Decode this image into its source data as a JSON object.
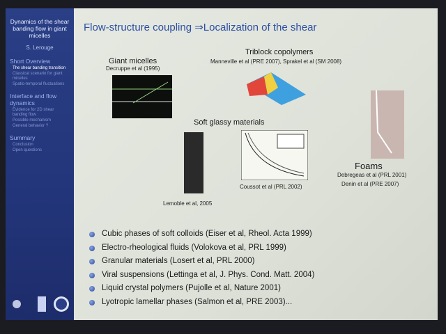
{
  "sidebar": {
    "title": "Dynamics of the shear banding flow in giant micelles",
    "author": "S. Lerouge",
    "sections": [
      {
        "title": "Short Overview",
        "items": [
          "The shear banding transition",
          "Classical scenario for giant micelles",
          "Spatio-temporal fluctuations"
        ]
      },
      {
        "title": "Interface and flow dynamics",
        "items": [
          "Evidence for 2D shear banding flow",
          "Possible mechanism",
          "General behavior ?"
        ]
      },
      {
        "title": "Summary",
        "items": [
          "Conclusion",
          "Open questions"
        ]
      }
    ]
  },
  "slide": {
    "title": "Flow-structure coupling ⇒Localization of the shear",
    "figures": {
      "giant_micelles": {
        "label": "Giant micelles",
        "ref": "Decruppe et al (1995)"
      },
      "triblock": {
        "label": "Triblock copolymers",
        "ref": "Manneville et al (PRE 2007), Sprakel et al (SM 2008)"
      },
      "soft_glassy": {
        "label": "Soft glassy materials",
        "ref_left": "Lemoble et al, 2005",
        "ref_right": "Coussot et al (PRL 2002)"
      },
      "foams": {
        "label": "Foams",
        "refs": [
          "Debregeas et al (PRL 2001)",
          "Denin et al (PRE 2007)"
        ]
      }
    },
    "bullets": [
      "Cubic phases of soft colloids (Eiser et al, Rheol. Acta 1999)",
      "Electro-rheological fluids (Volokova et al, PRL 1999)",
      "Granular materials (Losert et al, PRL 2000)",
      "Viral suspensions (Lettinga et al, J. Phys. Cond. Matt. 2004)",
      "Liquid crystal polymers (Pujolle et al, Nature 2001)",
      "Lyotropic lamellar phases (Salmon et al, PRE 2003)..."
    ]
  }
}
